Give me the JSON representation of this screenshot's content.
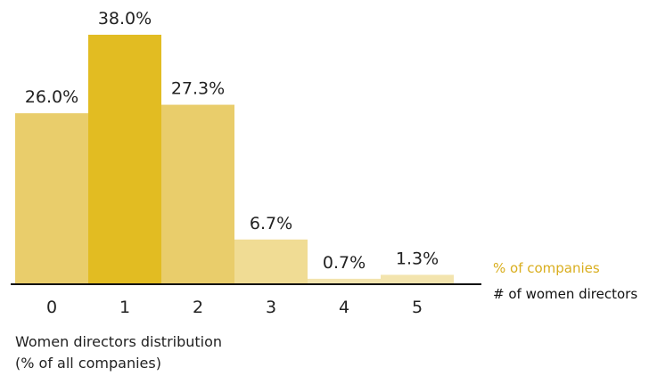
{
  "chart_data": {
    "type": "bar",
    "categories": [
      "0",
      "1",
      "2",
      "3",
      "4",
      "5"
    ],
    "values": [
      26.0,
      38.0,
      27.3,
      6.7,
      0.7,
      1.3
    ],
    "value_labels": [
      "26.0%",
      "38.0%",
      "27.3%",
      "6.7%",
      "0.7%",
      "1.3%"
    ],
    "ylim": [
      0,
      38.0
    ],
    "grid": false,
    "legend": {
      "value_series": "% of companies",
      "category_axis": "# of women directors",
      "placement": "right"
    },
    "caption_line1": "Women directors distribution",
    "caption_line2": "(% of all companies)"
  },
  "colors": {
    "bars": [
      "#e9cd6b",
      "#e2bc22",
      "#e9cd6b",
      "#f0dc94",
      "#f3e4ae",
      "#f3e4ae"
    ],
    "legend_pct": "#d9ae1e",
    "axis": "#111111",
    "text": "#222222"
  }
}
